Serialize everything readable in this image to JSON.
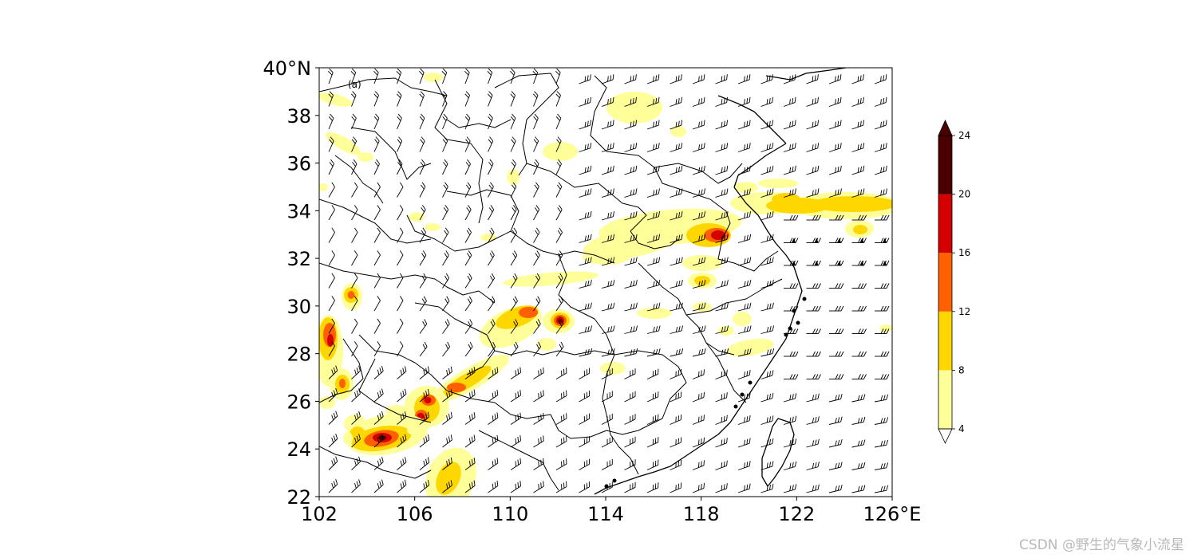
{
  "map": {
    "panel_label": "(a)",
    "lon_ticks": [
      "102",
      "106",
      "110",
      "114",
      "118",
      "122",
      "126°E"
    ],
    "lat_ticks": [
      "40°N",
      "38",
      "36",
      "34",
      "32",
      "30",
      "28",
      "26",
      "24",
      "22"
    ],
    "lon_range": [
      102,
      126
    ],
    "lat_range": [
      22,
      40
    ]
  },
  "colorbar": {
    "ticks": [
      "4",
      "8",
      "12",
      "16",
      "20",
      "24"
    ],
    "colors": [
      "#ffff99",
      "#ffd700",
      "#ff6000",
      "#d40000",
      "#4a0000"
    ],
    "extend": "both"
  },
  "watermark": "CSDN @野生的气象小流星",
  "chart_data": {
    "type": "heatmap",
    "title": "",
    "variable_levels": [
      4,
      8,
      12,
      16,
      20,
      24
    ],
    "overlay": "wind barbs",
    "hotspots": [
      {
        "lon": 112.1,
        "lat": 29.4,
        "max_level": 24
      },
      {
        "lon": 104.6,
        "lat": 24.3,
        "max_level": 24
      },
      {
        "lon": 106.5,
        "lat": 25.5,
        "max_level": 20
      },
      {
        "lon": 106.8,
        "lat": 26.1,
        "max_level": 20
      },
      {
        "lon": 102.4,
        "lat": 28.6,
        "max_level": 16
      },
      {
        "lon": 118.7,
        "lat": 33.0,
        "max_level": 16
      },
      {
        "lon": 103.2,
        "lat": 30.5,
        "max_level": 12
      },
      {
        "lon": 103.0,
        "lat": 26.8,
        "max_level": 12
      }
    ]
  }
}
